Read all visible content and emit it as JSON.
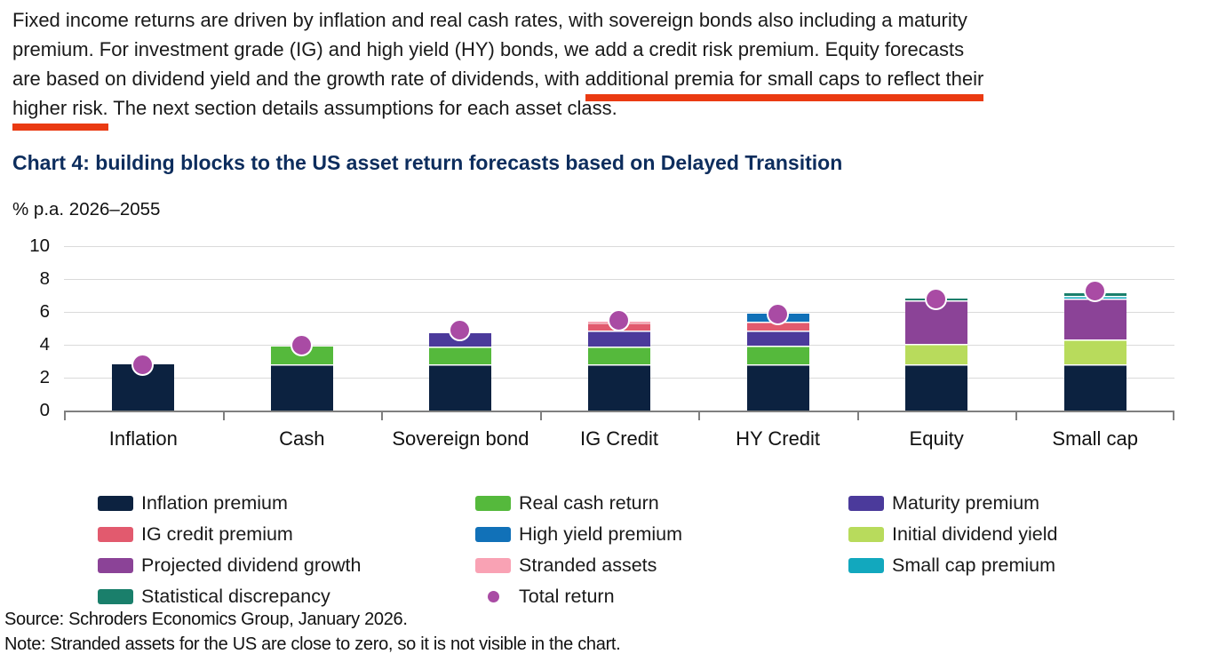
{
  "page": {
    "paragraph": {
      "line1": "Fixed income returns are driven by inflation and real cash rates, with sovereign bonds also including a maturity",
      "line2": "premium. For investment grade (IG) and high yield (HY) bonds, we add a credit risk premium. Equity forecasts",
      "line3_normal": "are based on dividend yield and the growth rate of dividends, with ",
      "line3_underlined": "additional premia for small caps to reflect their",
      "line4_underlined": "higher risk.",
      "line4_normal": " The next section details assumptions for each asset class.",
      "underline_color": "#EA3A12"
    },
    "chart_title": "Chart 4: building blocks to the US asset return forecasts based on Delayed Transition",
    "axis_unit_label": "% p.a. 2026–2055",
    "footer": {
      "source": "Source: Schroders Economics Group, January 2026.",
      "note": "Note: Stranded assets for the US are close to zero, so it is not visible in the chart."
    }
  },
  "chart_data": {
    "type": "bar",
    "subtype": "stacked-with-total-return-markers",
    "title": "Chart 4: building blocks to the US asset return forecasts based on Delayed Transition",
    "ylabel": "% p.a. 2026–2055",
    "xlabel": "",
    "ylim": [
      0,
      10
    ],
    "yticks": [
      0,
      2,
      4,
      6,
      8,
      10
    ],
    "grid": "horizontal",
    "legend_position": "bottom",
    "categories": [
      "Inflation",
      "Cash",
      "Sovereign bond",
      "IG Credit",
      "HY Credit",
      "Equity",
      "Small cap"
    ],
    "series": [
      {
        "name": "Inflation premium",
        "color": "#0C2240",
        "values": [
          2.8,
          2.8,
          2.8,
          2.8,
          2.8,
          2.8,
          2.8
        ]
      },
      {
        "name": "Real cash return",
        "color": "#55B93C",
        "values": [
          0,
          1.1,
          1.1,
          1.1,
          1.15,
          0,
          0
        ]
      },
      {
        "name": "Maturity premium",
        "color": "#4B3A9B",
        "values": [
          0,
          0,
          0.8,
          0.95,
          0.9,
          0,
          0
        ]
      },
      {
        "name": "IG credit premium",
        "color": "#E25A6E",
        "values": [
          0,
          0,
          0,
          0.5,
          0.55,
          0,
          0
        ]
      },
      {
        "name": "High yield premium",
        "color": "#1171B8",
        "values": [
          0,
          0,
          0,
          0,
          0.5,
          0,
          0
        ]
      },
      {
        "name": "Stranded assets",
        "color": "#F9A2B4",
        "values": [
          0,
          0,
          0,
          0.05,
          0,
          0,
          0
        ]
      },
      {
        "name": "Initial dividend yield",
        "color": "#B8DB5C",
        "values": [
          0,
          0,
          0,
          0,
          0,
          1.25,
          1.55
        ]
      },
      {
        "name": "Projected dividend growth",
        "color": "#8B4397",
        "values": [
          0,
          0,
          0,
          0,
          0,
          2.65,
          2.45
        ]
      },
      {
        "name": "Small cap premium",
        "color": "#12A8BE",
        "values": [
          0,
          0,
          0,
          0,
          0,
          0,
          0.2
        ]
      },
      {
        "name": "Statistical discrepancy",
        "color": "#1A7F6B",
        "values": [
          0,
          0,
          0,
          0,
          0,
          0.1,
          0.15
        ]
      }
    ],
    "markers": {
      "name": "Total return",
      "color": "#A94BA4",
      "values": [
        2.8,
        4.0,
        4.9,
        5.5,
        5.9,
        6.8,
        7.3
      ]
    },
    "totals": [
      2.8,
      3.9,
      4.7,
      5.4,
      5.9,
      6.8,
      7.15
    ]
  },
  "legend": {
    "columns": [
      {
        "items": [
          {
            "label": "Inflation premium",
            "color": "#0C2240",
            "shape": "rect"
          },
          {
            "label": "IG credit premium",
            "color": "#E25A6E",
            "shape": "rect"
          },
          {
            "label": "Projected dividend growth",
            "color": "#8B4397",
            "shape": "rect"
          },
          {
            "label": "Statistical discrepancy",
            "color": "#1A7F6B",
            "shape": "rect"
          }
        ]
      },
      {
        "items": [
          {
            "label": "Real cash return",
            "color": "#55B93C",
            "shape": "rect"
          },
          {
            "label": "High yield premium",
            "color": "#1171B8",
            "shape": "rect"
          },
          {
            "label": "Stranded assets",
            "color": "#F9A2B4",
            "shape": "rect"
          },
          {
            "label": "Total return",
            "color": "#A94BA4",
            "shape": "dot"
          }
        ]
      },
      {
        "items": [
          {
            "label": "Maturity premium",
            "color": "#4B3A9B",
            "shape": "rect"
          },
          {
            "label": "Initial dividend yield",
            "color": "#B8DB5C",
            "shape": "rect"
          },
          {
            "label": "Small cap premium",
            "color": "#12A8BE",
            "shape": "rect"
          }
        ]
      }
    ]
  }
}
